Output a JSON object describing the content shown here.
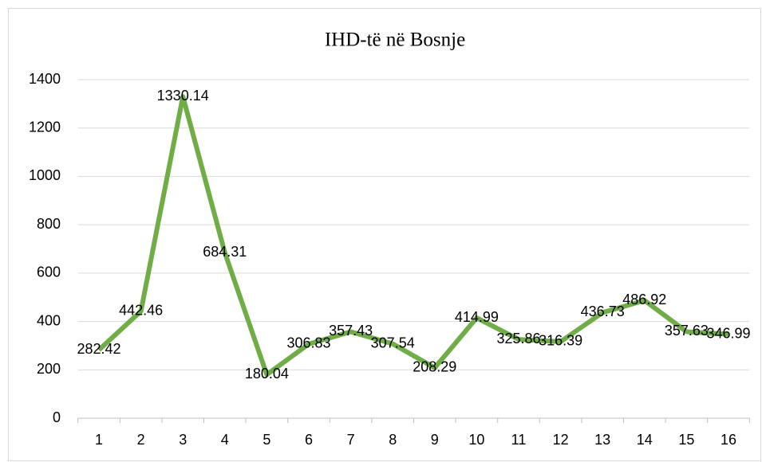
{
  "chart_data": {
    "type": "line",
    "title": "IHD-të në Bosnje",
    "categories": [
      "1",
      "2",
      "3",
      "4",
      "5",
      "6",
      "7",
      "8",
      "9",
      "10",
      "11",
      "12",
      "13",
      "14",
      "15",
      "16"
    ],
    "series": [
      {
        "name": "IHD",
        "color": "#70ad47",
        "values": [
          282.42,
          442.46,
          1330.14,
          684.31,
          180.04,
          306.83,
          357.43,
          307.54,
          208.29,
          414.99,
          325.86,
          316.39,
          436.73,
          486.92,
          357.63,
          346.99
        ]
      }
    ],
    "ylim": [
      0,
      1400
    ],
    "yticks": [
      0,
      200,
      400,
      600,
      800,
      1000,
      1200,
      1400
    ],
    "grid": true
  }
}
